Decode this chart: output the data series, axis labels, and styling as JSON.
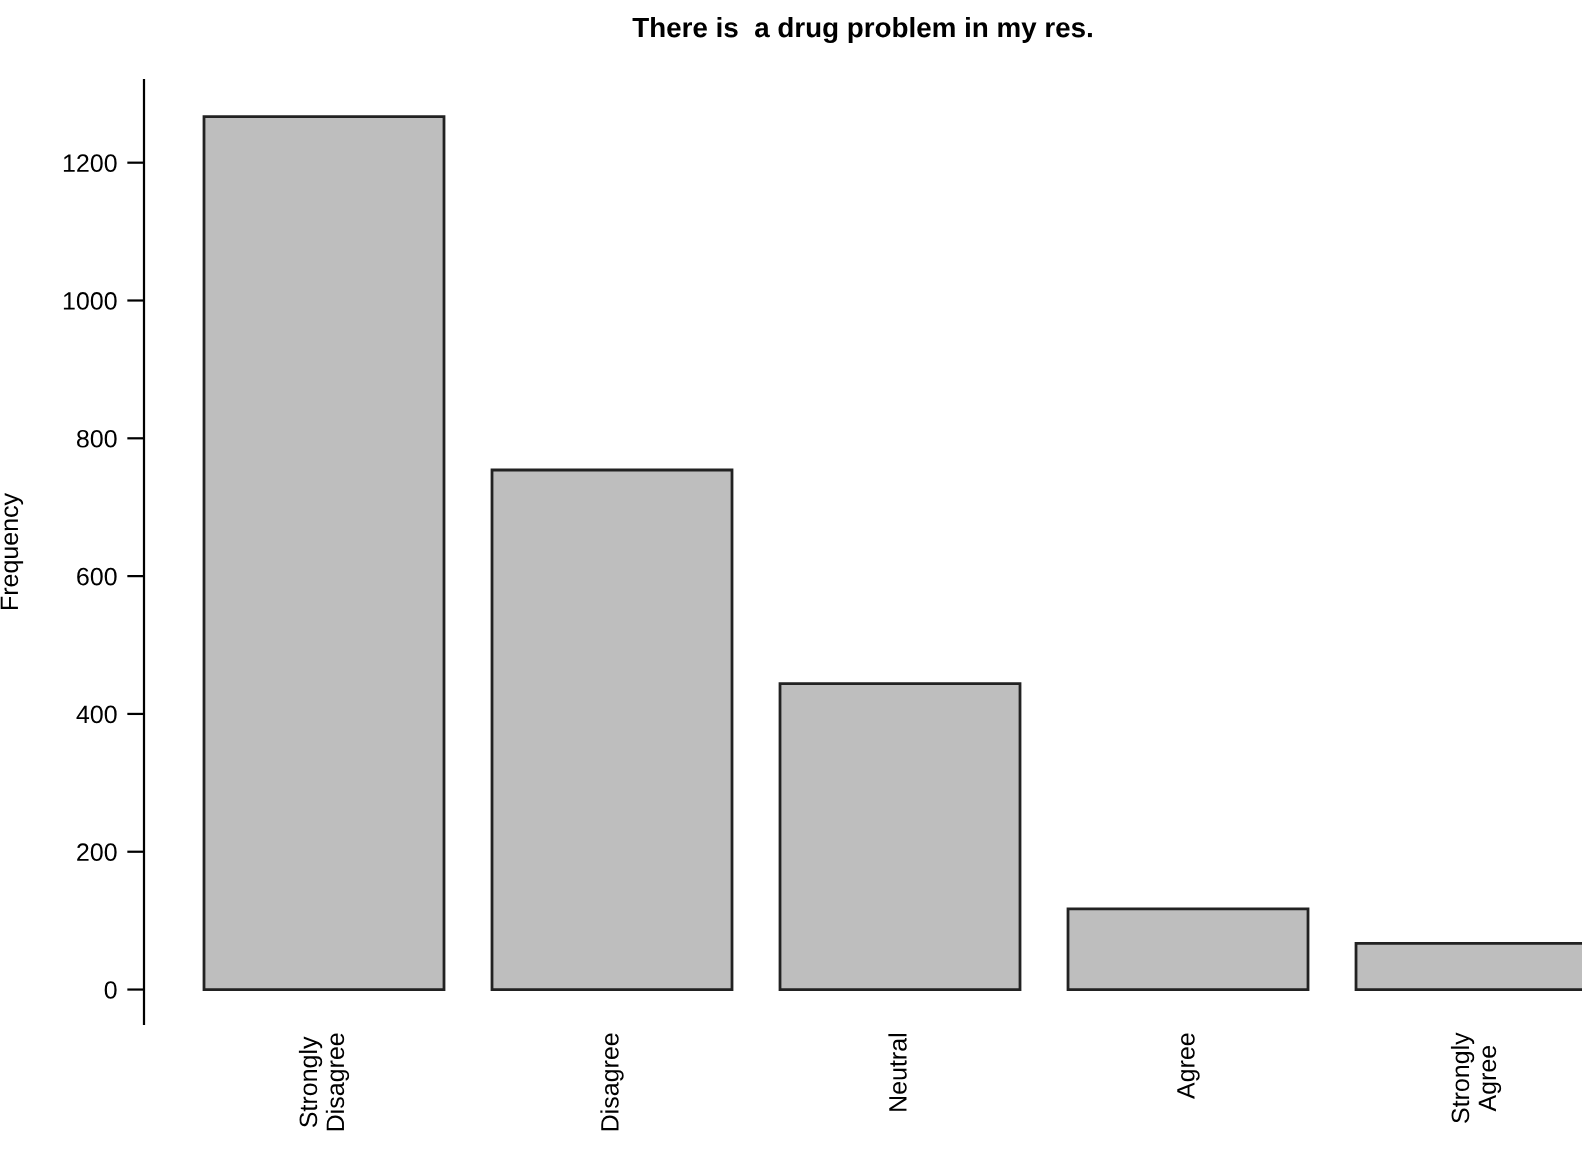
{
  "chart_data": {
    "type": "bar",
    "title": "There is  a drug problem in my res.",
    "ylabel": "Frequency",
    "categories": [
      "Strongly\nDisagree",
      "Disagree",
      "Neutral",
      "Agree",
      "Strongly\nAgree"
    ],
    "values": [
      1267,
      754,
      444,
      117,
      67
    ],
    "color": "#bebebe",
    "ylim": [
      -50,
      1320
    ],
    "yticks": [
      0,
      200,
      400,
      600,
      800,
      1000,
      1200
    ],
    "grid": false,
    "legend": false
  }
}
